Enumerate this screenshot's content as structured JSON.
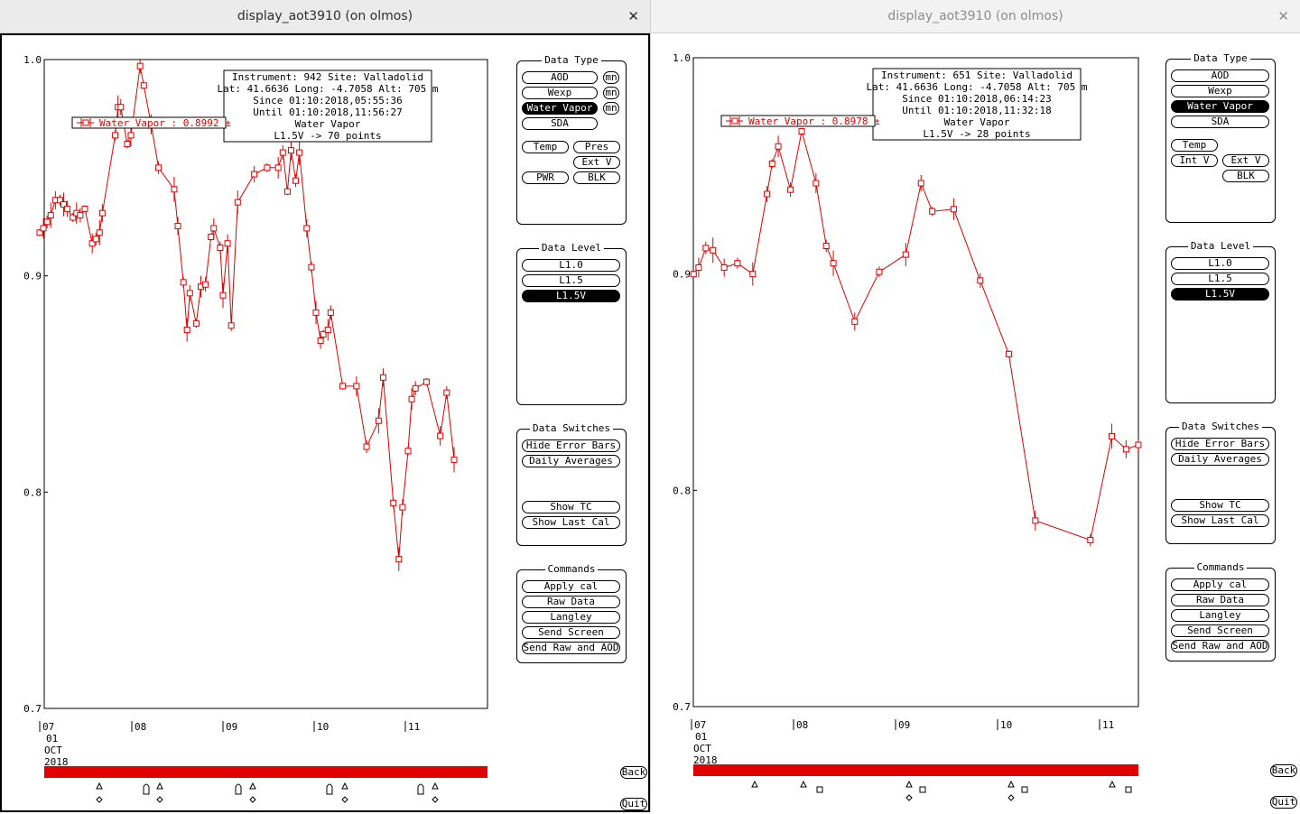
{
  "colors": {
    "series": "#e00000",
    "background": "#ffffff",
    "selected_button": "#000000"
  },
  "windows": [
    {
      "title": "display_aot3910 (on olmos)",
      "close_icon": "close-icon",
      "info": {
        "line1": "Instrument: 942 Site: Valladolid",
        "line2": "Lat: 41.6636 Long: -4.7058 Alt: 705 m",
        "line3": "Since 01:10:2018,05:55:36",
        "line4": "Until 01:10:2018,11:56:27",
        "line5": "Water Vapor",
        "line6": "L1.5V -> 70 points"
      },
      "legend": "Water Vapor : 0.8992 ±",
      "data_type_buttons": [
        {
          "label": "AOD",
          "selected": false
        },
        {
          "label": "Wexp",
          "selected": false
        },
        {
          "label": "Water Vapor",
          "selected": true
        },
        {
          "label": "SDA",
          "selected": false
        },
        {
          "label": "Temp",
          "selected": false
        },
        {
          "label": "Pres",
          "selected": false
        },
        {
          "label": "Ext V",
          "selected": false
        },
        {
          "label": "PWR",
          "selected": false
        },
        {
          "label": "BLK",
          "selected": false
        }
      ],
      "mn_labels": [
        "mn",
        "mn",
        "mn"
      ]
    },
    {
      "title": "display_aot3910 (on olmos)",
      "close_icon": "close-icon",
      "info": {
        "line1": "Instrument: 651 Site: Valladolid",
        "line2": "Lat: 41.6636 Long: -4.7058 Alt: 705 m",
        "line3": "Since 01:10:2018,06:14:23",
        "line4": "Until 01:10:2018,11:32:18",
        "line5": "Water Vapor",
        "line6": "L1.5V -> 28 points"
      },
      "legend": "Water Vapor : 0.8978 ±",
      "data_type_buttons": [
        {
          "label": "AOD",
          "selected": false
        },
        {
          "label": "Wexp",
          "selected": false
        },
        {
          "label": "Water Vapor",
          "selected": true
        },
        {
          "label": "SDA",
          "selected": false
        },
        {
          "label": "Temp",
          "selected": false
        },
        {
          "label": "Int V",
          "selected": false
        },
        {
          "label": "Ext V",
          "selected": false
        },
        {
          "label": "BLK",
          "selected": false
        }
      ]
    }
  ],
  "panels": {
    "data_type": "Data Type",
    "data_level": "Data Level",
    "data_switches": "Data Switches",
    "commands": "Commands"
  },
  "data_level_buttons": [
    {
      "label": "L1.0",
      "selected": false
    },
    {
      "label": "L1.5",
      "selected": false
    },
    {
      "label": "L1.5V",
      "selected": true
    }
  ],
  "switch_buttons": [
    "Hide Error Bars",
    "Daily Averages",
    "Show TC",
    "Show Last Cal"
  ],
  "command_buttons": [
    "Apply cal",
    "Raw Data",
    "Langley",
    "Send Screen",
    "Send Raw and AOD"
  ],
  "back_label": "Back",
  "quit_label": "Quit",
  "date_labels": [
    "01",
    "OCT",
    "2018"
  ],
  "chart_data": [
    {
      "type": "line",
      "ylim": [
        0.7,
        1.0
      ],
      "y_ticks": [
        "1.0",
        "0.9",
        "0.8",
        "0.7"
      ],
      "x_ticks": [
        "07",
        "08",
        "09",
        "10",
        "11"
      ],
      "xlim_hours": [
        7.0,
        11.95
      ],
      "series": [
        {
          "name": "Water Vapor",
          "points": [
            [
              7.0,
              0.92
            ],
            [
              7.04,
              0.922
            ],
            [
              7.08,
              0.925
            ],
            [
              7.12,
              0.928
            ],
            [
              7.17,
              0.935
            ],
            [
              7.22,
              0.935
            ],
            [
              7.26,
              0.933
            ],
            [
              7.3,
              0.931
            ],
            [
              7.36,
              0.927
            ],
            [
              7.4,
              0.929
            ],
            [
              7.44,
              0.928
            ],
            [
              7.49,
              0.931
            ],
            [
              7.57,
              0.915
            ],
            [
              7.61,
              0.917
            ],
            [
              7.65,
              0.92
            ],
            [
              7.68,
              0.929
            ],
            [
              7.82,
              0.965
            ],
            [
              7.85,
              0.978
            ],
            [
              7.88,
              0.978
            ],
            [
              7.95,
              0.961
            ],
            [
              7.99,
              0.965
            ],
            [
              8.09,
              0.997
            ],
            [
              8.13,
              0.988
            ],
            [
              8.21,
              0.97
            ],
            [
              8.29,
              0.95
            ],
            [
              8.46,
              0.94
            ],
            [
              8.5,
              0.923
            ],
            [
              8.56,
              0.897
            ],
            [
              8.6,
              0.875
            ],
            [
              8.63,
              0.892
            ],
            [
              8.7,
              0.878
            ],
            [
              8.75,
              0.895
            ],
            [
              8.8,
              0.896
            ],
            [
              8.86,
              0.918
            ],
            [
              8.89,
              0.922
            ],
            [
              8.96,
              0.913
            ],
            [
              8.99,
              0.891
            ],
            [
              9.04,
              0.915
            ],
            [
              9.08,
              0.877
            ],
            [
              9.15,
              0.934
            ],
            [
              9.33,
              0.947
            ],
            [
              9.47,
              0.95
            ],
            [
              9.59,
              0.95
            ],
            [
              9.64,
              0.957
            ],
            [
              9.69,
              0.939
            ],
            [
              9.73,
              0.958
            ],
            [
              9.78,
              0.944
            ],
            [
              9.82,
              0.957
            ],
            [
              9.9,
              0.922
            ],
            [
              9.95,
              0.904
            ],
            [
              10.0,
              0.883
            ],
            [
              10.05,
              0.87
            ],
            [
              10.08,
              0.873
            ],
            [
              10.13,
              0.875
            ],
            [
              10.16,
              0.883
            ],
            [
              10.29,
              0.849
            ],
            [
              10.44,
              0.849
            ],
            [
              10.55,
              0.821
            ],
            [
              10.68,
              0.833
            ],
            [
              10.73,
              0.853
            ],
            [
              10.84,
              0.795
            ],
            [
              10.9,
              0.769
            ],
            [
              10.94,
              0.793
            ],
            [
              11.0,
              0.819
            ],
            [
              11.04,
              0.843
            ],
            [
              11.08,
              0.848
            ],
            [
              11.2,
              0.851
            ],
            [
              11.35,
              0.826
            ],
            [
              11.42,
              0.846
            ],
            [
              11.5,
              0.815
            ]
          ]
        }
      ]
    },
    {
      "type": "line",
      "ylim": [
        0.7,
        1.0
      ],
      "y_ticks": [
        "1.0",
        "0.9",
        "0.8",
        "0.7"
      ],
      "x_ticks": [
        "07",
        "08",
        "09",
        "10",
        "11"
      ],
      "xlim_hours": [
        7.0,
        11.4
      ],
      "series": [
        {
          "name": "Water Vapor",
          "points": [
            [
              7.02,
              0.9
            ],
            [
              7.07,
              0.903
            ],
            [
              7.14,
              0.912
            ],
            [
              7.21,
              0.911
            ],
            [
              7.32,
              0.903
            ],
            [
              7.45,
              0.905
            ],
            [
              7.6,
              0.9
            ],
            [
              7.74,
              0.937
            ],
            [
              7.79,
              0.951
            ],
            [
              7.85,
              0.959
            ],
            [
              7.97,
              0.939
            ],
            [
              8.08,
              0.966
            ],
            [
              8.22,
              0.942
            ],
            [
              8.32,
              0.913
            ],
            [
              8.39,
              0.905
            ],
            [
              8.6,
              0.878
            ],
            [
              8.84,
              0.901
            ],
            [
              9.1,
              0.909
            ],
            [
              9.25,
              0.942
            ],
            [
              9.36,
              0.929
            ],
            [
              9.57,
              0.93
            ],
            [
              9.83,
              0.897
            ],
            [
              10.11,
              0.863
            ],
            [
              10.37,
              0.786
            ],
            [
              10.91,
              0.777
            ],
            [
              11.12,
              0.825
            ],
            [
              11.26,
              0.819
            ],
            [
              11.38,
              0.821
            ]
          ]
        }
      ]
    }
  ]
}
